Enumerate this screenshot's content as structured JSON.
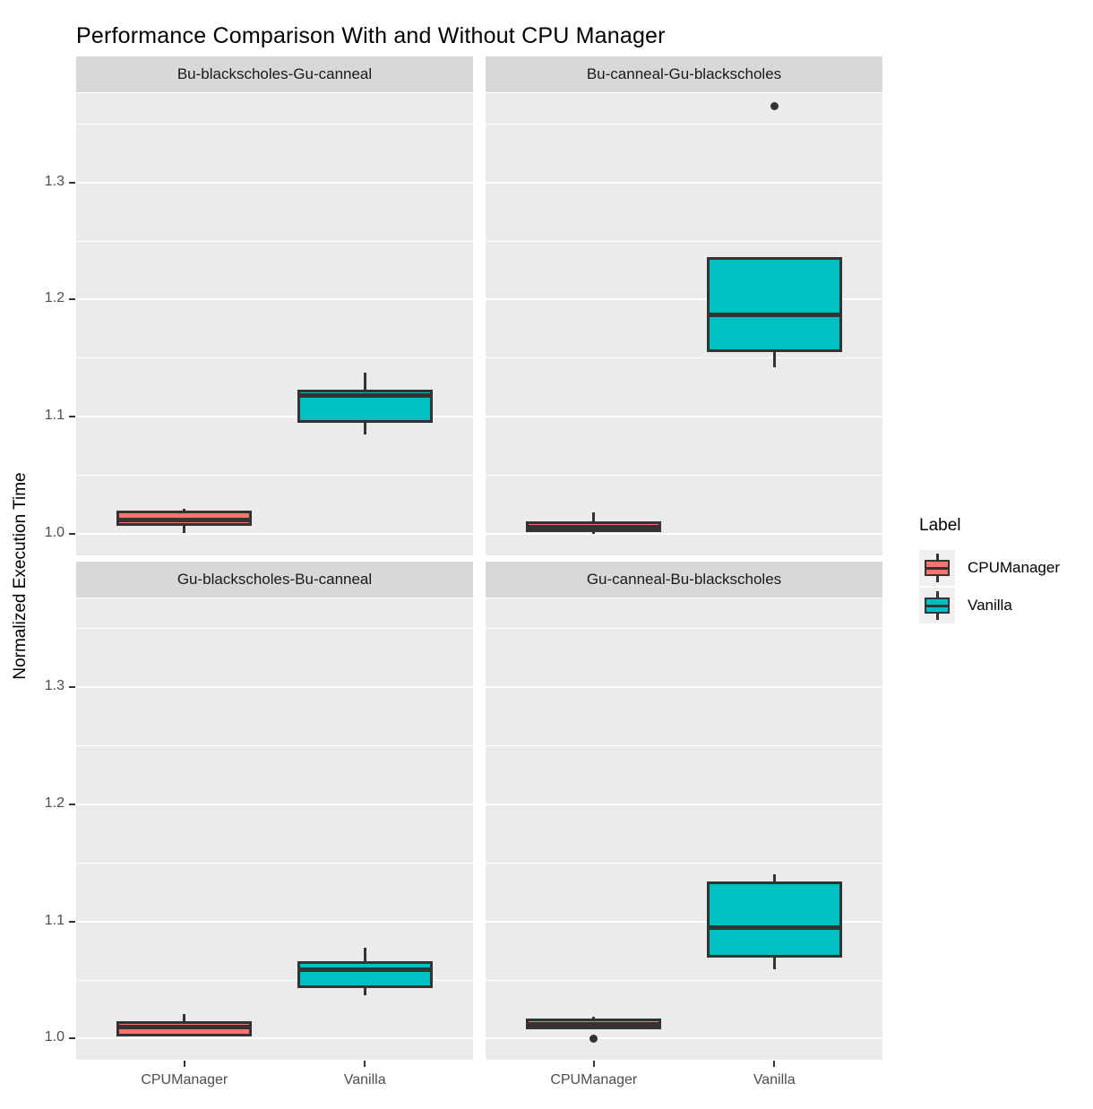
{
  "chart_data": {
    "type": "boxplot",
    "title": "Performance Comparison With and Without CPU Manager",
    "xlabel": "",
    "ylabel": "Normalized Execution Time",
    "categories": [
      "CPUManager",
      "Vanilla"
    ],
    "y_ticks": [
      1.0,
      1.1,
      1.2,
      1.3
    ],
    "y_minor_ticks": [
      1.05,
      1.15,
      1.25,
      1.35
    ],
    "ylim": [
      0.982,
      1.376
    ],
    "grid": "on",
    "legend": {
      "title": "Label",
      "position": "right",
      "items": [
        {
          "label": "CPUManager",
          "color": "#F8766D"
        },
        {
          "label": "Vanilla",
          "color": "#00BFC4"
        }
      ]
    },
    "style_colors": {
      "panel_background": "#EBEBEB",
      "strip_background": "#D8D8D8",
      "gridline": "#FFFFFF",
      "box_outline": "#333333",
      "tick_label": "#4D4D4D"
    },
    "facets": [
      {
        "label": "Bu-blackscholes-Gu-canneal",
        "boxes": [
          {
            "group": "CPUManager",
            "whisker_low": 1.001,
            "q1": 1.007,
            "median": 1.012,
            "q3": 1.02,
            "whisker_high": 1.022,
            "outliers": []
          },
          {
            "group": "Vanilla",
            "whisker_low": 1.085,
            "q1": 1.095,
            "median": 1.118,
            "q3": 1.123,
            "whisker_high": 1.138,
            "outliers": []
          }
        ]
      },
      {
        "label": "Bu-canneal-Gu-blackscholes",
        "boxes": [
          {
            "group": "CPUManager",
            "whisker_low": 1.0,
            "q1": 1.002,
            "median": 1.006,
            "q3": 1.011,
            "whisker_high": 1.019,
            "outliers": []
          },
          {
            "group": "Vanilla",
            "whisker_low": 1.142,
            "q1": 1.155,
            "median": 1.187,
            "q3": 1.236,
            "whisker_high": 1.236,
            "outliers": [
              1.365
            ]
          }
        ]
      },
      {
        "label": "Gu-blackscholes-Bu-canneal",
        "boxes": [
          {
            "group": "CPUManager",
            "whisker_low": 1.002,
            "q1": 1.002,
            "median": 1.01,
            "q3": 1.015,
            "whisker_high": 1.021,
            "outliers": []
          },
          {
            "group": "Vanilla",
            "whisker_low": 1.037,
            "q1": 1.043,
            "median": 1.059,
            "q3": 1.066,
            "whisker_high": 1.078,
            "outliers": []
          }
        ]
      },
      {
        "label": "Gu-canneal-Bu-blackscholes",
        "boxes": [
          {
            "group": "CPUManager",
            "whisker_low": 1.008,
            "q1": 1.008,
            "median": 1.012,
            "q3": 1.017,
            "whisker_high": 1.019,
            "outliers": [
              1.0
            ]
          },
          {
            "group": "Vanilla",
            "whisker_low": 1.059,
            "q1": 1.069,
            "median": 1.095,
            "q3": 1.134,
            "whisker_high": 1.14,
            "outliers": []
          }
        ]
      }
    ]
  }
}
